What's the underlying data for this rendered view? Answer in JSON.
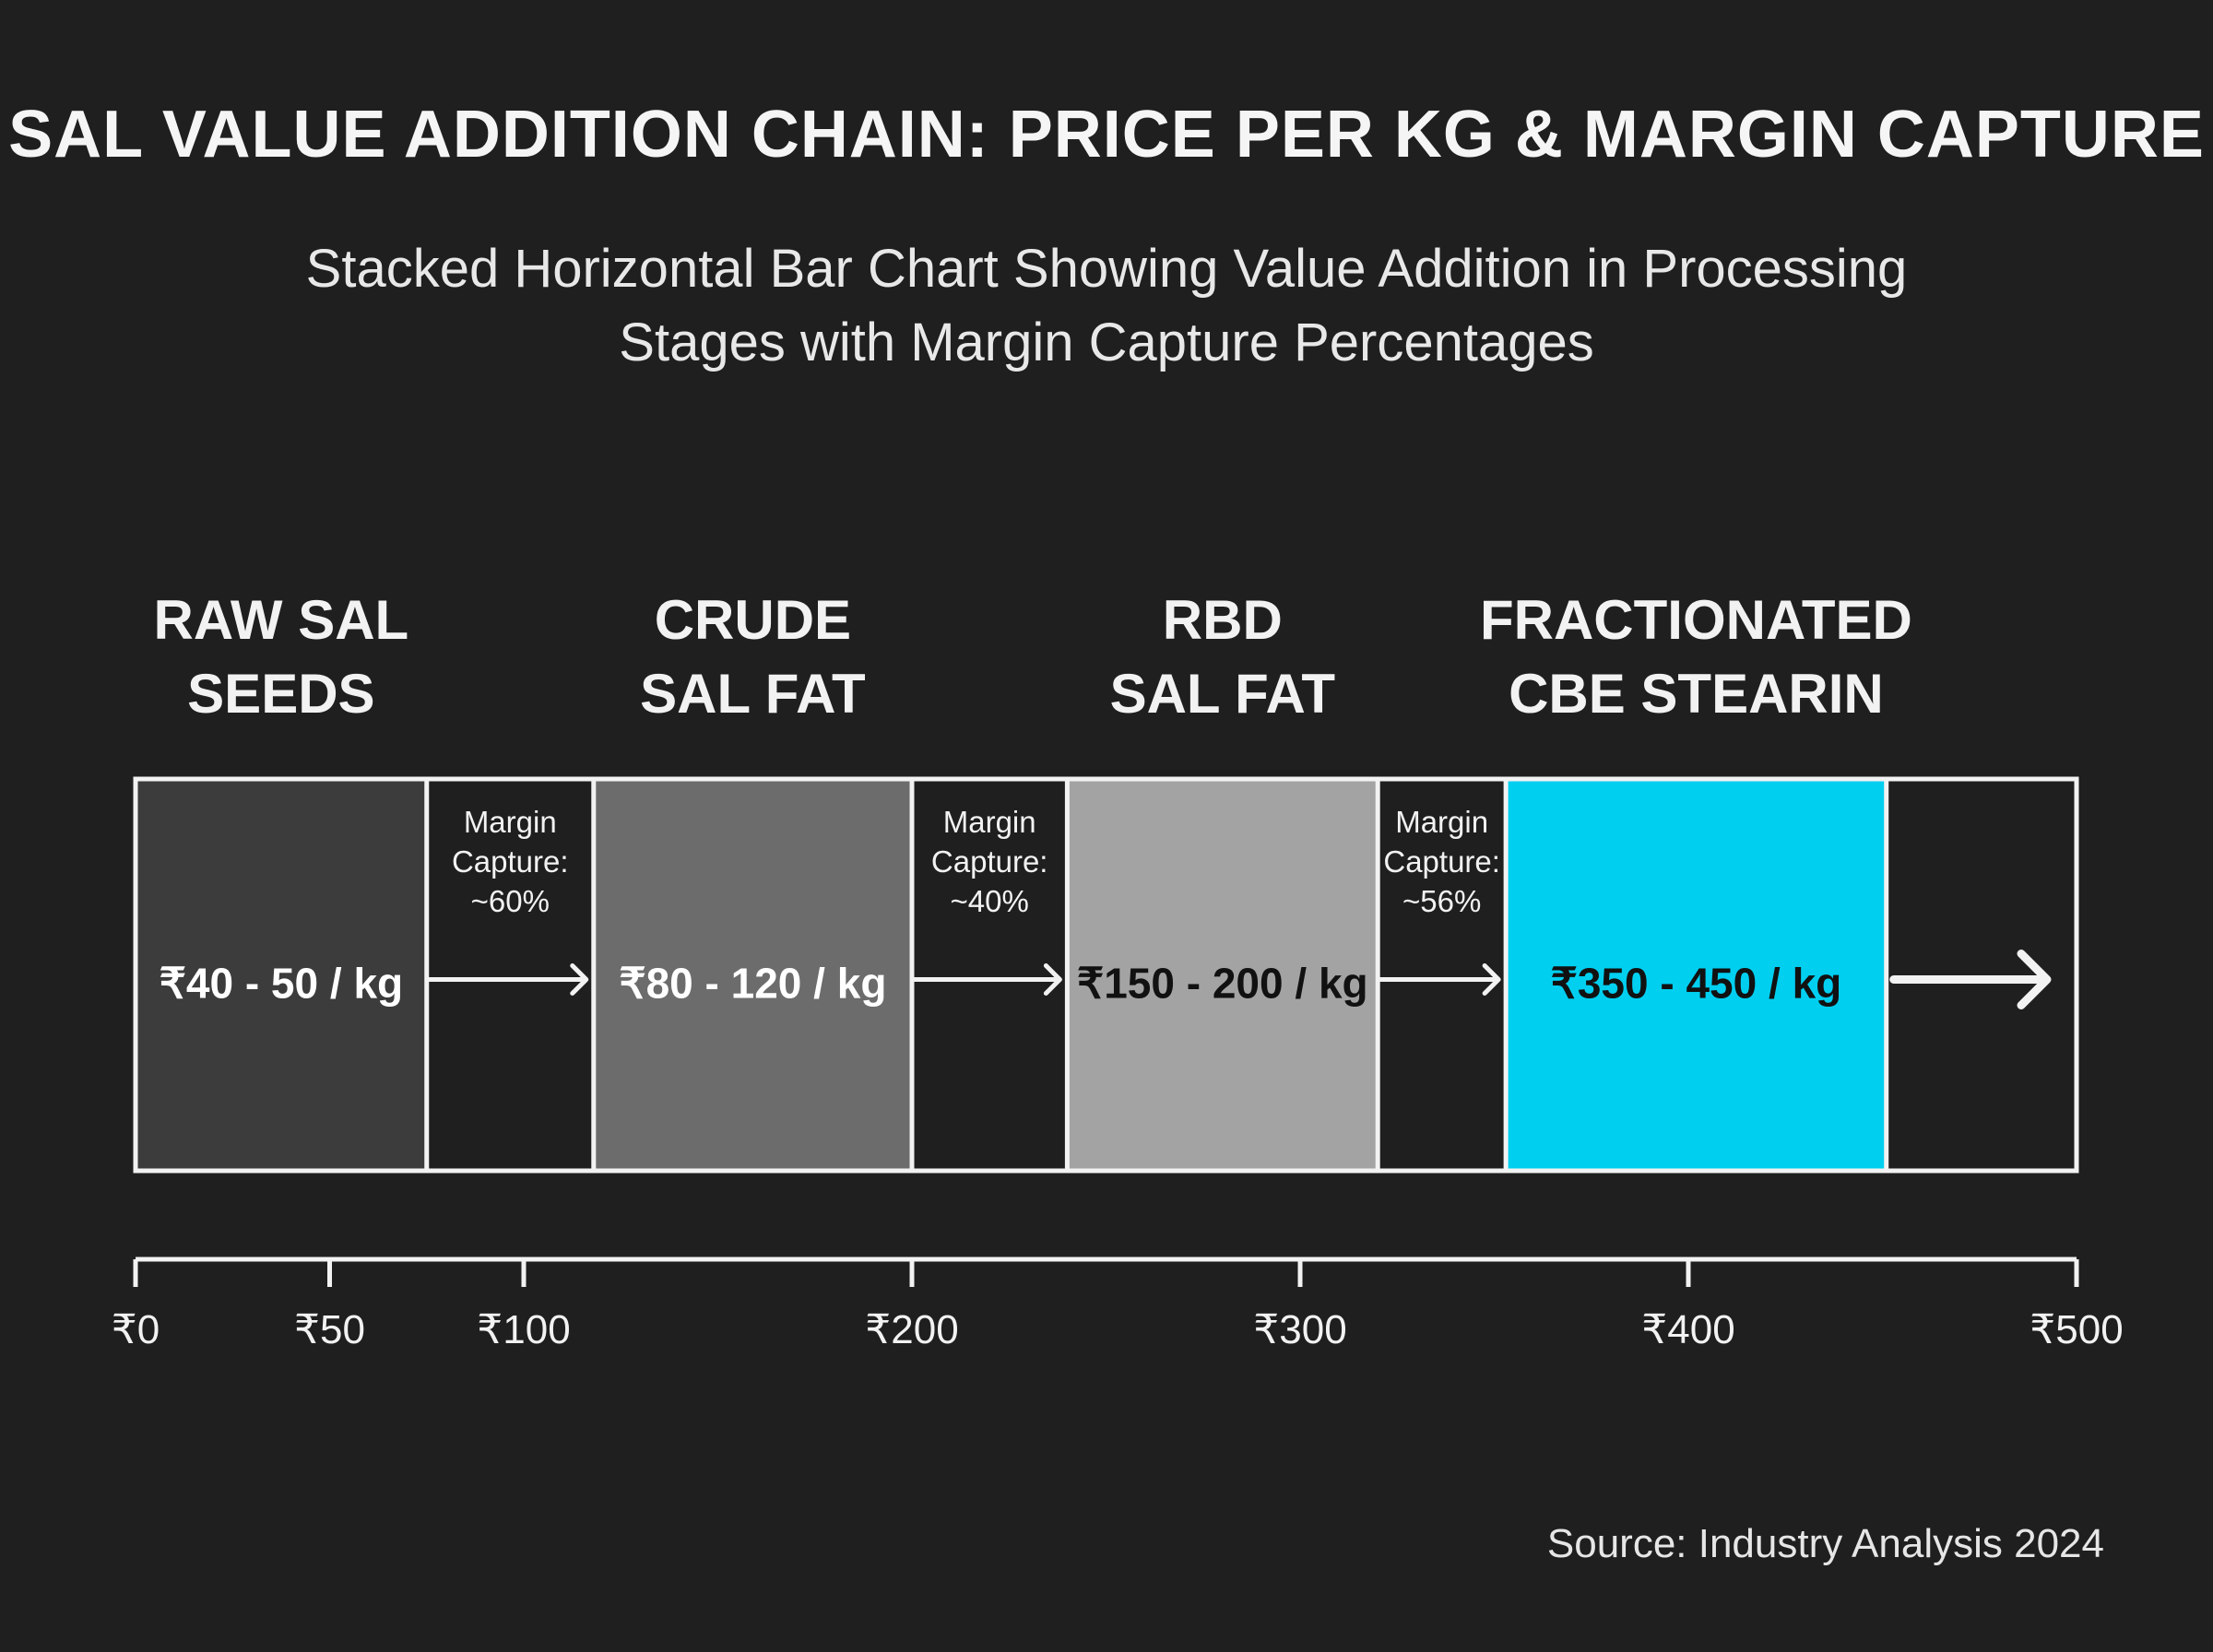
{
  "chart_data": {
    "type": "bar",
    "orientation": "horizontal",
    "stacked": true,
    "title": "SAL VALUE ADDITION CHAIN: PRICE PER KG & MARGIN CAPTURE",
    "subtitle_lines": [
      "Stacked Horizontal Bar Chart Showing Value Addition in Processing",
      "Stages with Margin Capture Percentages"
    ],
    "xlim": [
      0,
      500
    ],
    "x_ticks": [
      {
        "value": 0,
        "label": "₹0"
      },
      {
        "value": 50,
        "label": "₹50"
      },
      {
        "value": 100,
        "label": "₹100"
      },
      {
        "value": 200,
        "label": "₹200"
      },
      {
        "value": 300,
        "label": "₹300"
      },
      {
        "value": 400,
        "label": "₹400"
      },
      {
        "value": 500,
        "label": "₹500"
      }
    ],
    "stages": [
      {
        "name_lines": [
          "RAW SAL",
          "SEEDS"
        ],
        "price_label": "₹40 - 50 / kg",
        "x_start": 0,
        "x_end": 75,
        "color": "#3c3c3c",
        "text_color": "#ffffff"
      },
      {
        "name_lines": [
          "CRUDE",
          "SAL FAT"
        ],
        "price_label": "₹80 - 120 / kg",
        "x_start": 118,
        "x_end": 200,
        "color": "#6c6c6c",
        "text_color": "#ffffff"
      },
      {
        "name_lines": [
          "RBD",
          "SAL FAT"
        ],
        "price_label": "₹150 - 200 / kg",
        "x_start": 240,
        "x_end": 320,
        "color": "#a3a3a3",
        "text_color": "#111111"
      },
      {
        "name_lines": [
          "FRACTIONATED",
          "CBE STEARIN"
        ],
        "price_label": "₹350 - 450 / kg",
        "x_start": 353,
        "x_end": 451,
        "color": "#00cff0",
        "text_color": "#111111"
      }
    ],
    "margins": [
      {
        "label_lines": [
          "Margin",
          "Capture:",
          "~60%"
        ],
        "x_start": 75,
        "x_end": 118
      },
      {
        "label_lines": [
          "Margin",
          "Capture:",
          "~40%"
        ],
        "x_start": 200,
        "x_end": 240
      },
      {
        "label_lines": [
          "Margin",
          "Capture:",
          "~56%"
        ],
        "x_start": 320,
        "x_end": 353
      }
    ],
    "end_arrow": {
      "x_start": 451,
      "x_end": 500
    },
    "source": "Source: Industry Analysis 2024",
    "colors": {
      "background": "#1f1f1f",
      "border": "#f2f2f2",
      "text": "#f2f2f2"
    }
  }
}
